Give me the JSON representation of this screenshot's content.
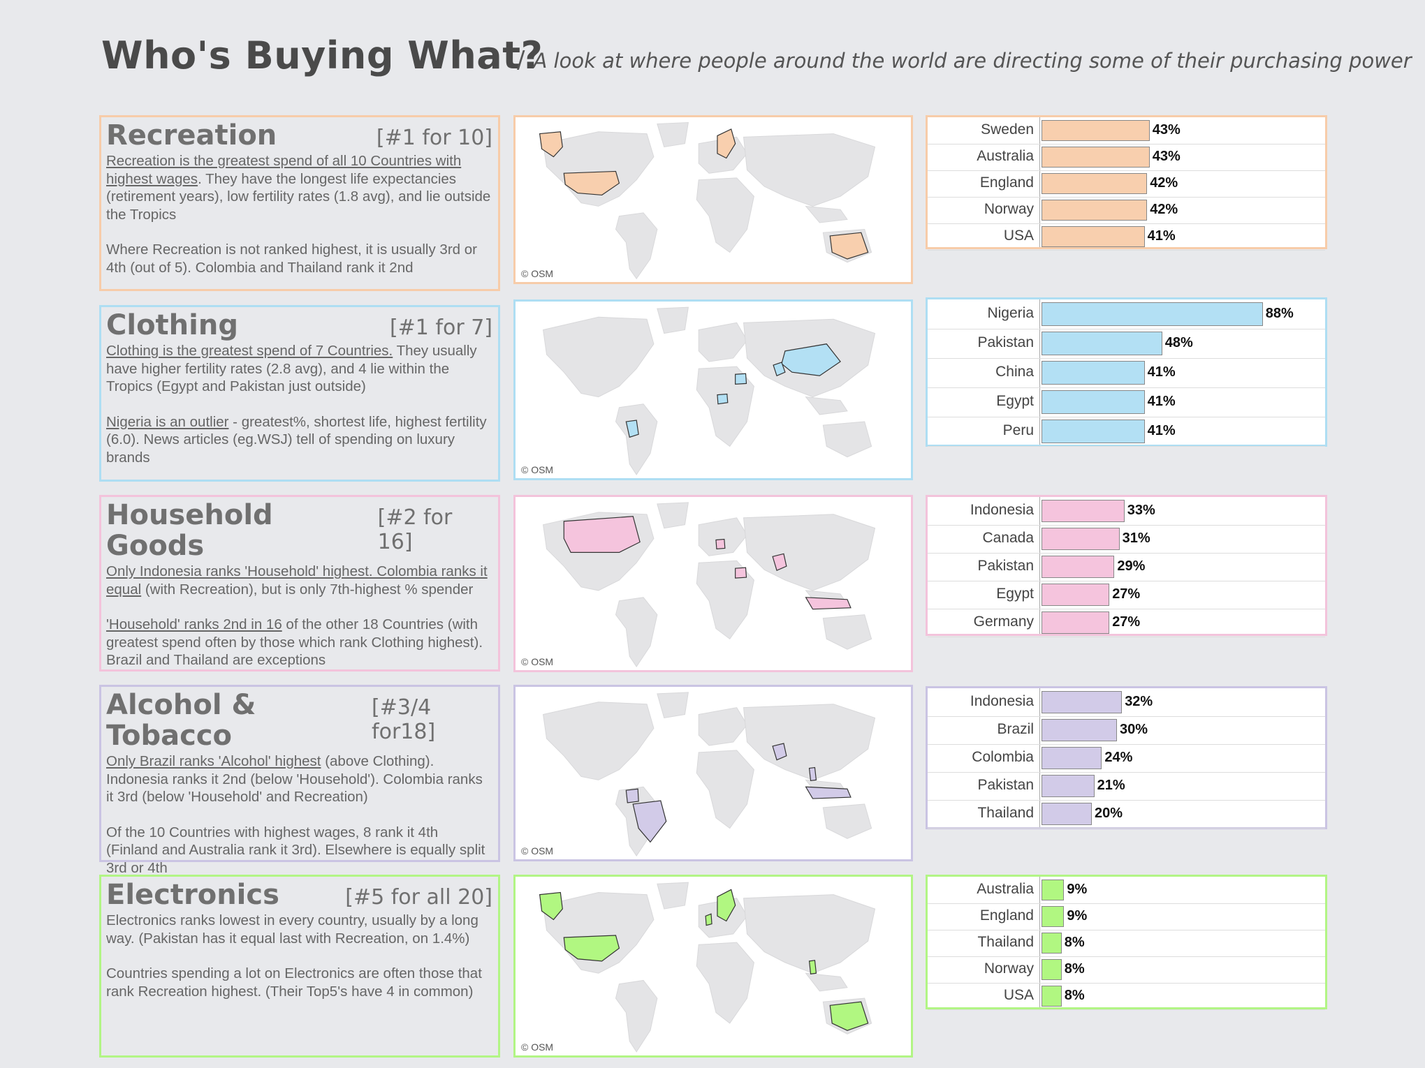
{
  "title": "Who's Buying What?",
  "subtitle_sep": "/",
  "subtitle": "A look at where people around the world are directing some of their purchasing power",
  "osm": "© OSM",
  "sections": [
    {
      "category": "Recreation",
      "rank": "[#1 for 10]",
      "color": "#f8cfae",
      "border": "#f7cca9",
      "p1_u": "Recreation is the greatest spend of all 10 Countries with highest wages",
      "p1_rest": ". They have the longest life expectancies (retirement years), low fertility rates (1.8 avg), and lie outside the Tropics",
      "p2_u": "",
      "p2_rest": "Where Recreation is not ranked highest, it is usually 3rd or 4th (out of 5). Colombia and Thailand rank it 2nd"
    },
    {
      "category": "Clothing",
      "rank": "[#1 for 7]",
      "color": "#b3e0f4",
      "border": "#aedef3",
      "p1_u": "Clothing is the greatest spend of 7 Countries.",
      "p1_rest": " They usually have higher fertility rates (2.8 avg), and 4 lie within the Tropics (Egypt and Pakistan just outside)",
      "p2_u": "Nigeria is an outlier",
      "p2_rest": " - greatest%, shortest life, highest fertility (6.0). News articles (eg.WSJ) tell of spending on luxury brands"
    },
    {
      "category": "Household Goods",
      "rank": "[#2 for 16]",
      "color": "#f5c4dd",
      "border": "#f3c3db",
      "p1_u": "Only Indonesia ranks 'Household' highest. Colombia ranks it equal",
      "p1_rest": " (with Recreation), but is only 7th-highest % spender",
      "p2_u": "'Household' ranks 2nd in 16",
      "p2_rest": " of the other 18 Countries (with greatest spend often by those which rank Clothing highest). Brazil and Thailand are exceptions"
    },
    {
      "category": "Alcohol & Tobacco",
      "rank": "[#3/4 for18]",
      "color": "#d2cbe8",
      "border": "#cac4e3",
      "p1_u": "Only Brazil ranks 'Alcohol' highest",
      "p1_rest": " (above Clothing). Indonesia ranks it 2nd (below 'Household'). Colombia ranks it 3rd (below 'Household' and Recreation)",
      "p2_u": "",
      "p2_rest": "Of the 10 Countries with highest wages, 8 rank it 4th (Finland and Australia rank it 3rd). Elsewhere is equally split 3rd or 4th"
    },
    {
      "category": "Electronics",
      "rank": "[#5 for all 20]",
      "color": "#b1f781",
      "border": "#b2f585",
      "p1_u": "",
      "p1_rest": "Electronics ranks lowest in every country, usually by a long way. (Pakistan has it equal last with Recreation, on 1.4%)",
      "p2_u": "",
      "p2_rest": "Countries spending a lot on Electronics are often those that rank Recreation highest. (Their Top5's have 4 in common)"
    }
  ],
  "chart_data": [
    {
      "type": "bar",
      "title": "Recreation",
      "categories": [
        "Sweden",
        "Australia",
        "England",
        "Norway",
        "USA"
      ],
      "values": [
        43,
        43,
        42,
        42,
        41
      ],
      "labels": [
        "43%",
        "43%",
        "42%",
        "42%",
        "41%"
      ]
    },
    {
      "type": "bar",
      "title": "Clothing",
      "categories": [
        "Nigeria",
        "Pakistan",
        "China",
        "Egypt",
        "Peru"
      ],
      "values": [
        88,
        48,
        41,
        41,
        41
      ],
      "labels": [
        "88%",
        "48%",
        "41%",
        "41%",
        "41%"
      ]
    },
    {
      "type": "bar",
      "title": "Household Goods",
      "categories": [
        "Indonesia",
        "Canada",
        "Pakistan",
        "Egypt",
        "Germany"
      ],
      "values": [
        33,
        31,
        29,
        27,
        27
      ],
      "labels": [
        "33%",
        "31%",
        "29%",
        "27%",
        "27%"
      ]
    },
    {
      "type": "bar",
      "title": "Alcohol & Tobacco",
      "categories": [
        "Indonesia",
        "Brazil",
        "Colombia",
        "Pakistan",
        "Thailand"
      ],
      "values": [
        32,
        30,
        24,
        21,
        20
      ],
      "labels": [
        "32%",
        "30%",
        "24%",
        "21%",
        "20%"
      ]
    },
    {
      "type": "bar",
      "title": "Electronics",
      "categories": [
        "Australia",
        "England",
        "Thailand",
        "Norway",
        "USA"
      ],
      "values": [
        9,
        9,
        8,
        8,
        8
      ],
      "labels": [
        "9%",
        "9%",
        "8%",
        "8%",
        "8%"
      ]
    }
  ]
}
